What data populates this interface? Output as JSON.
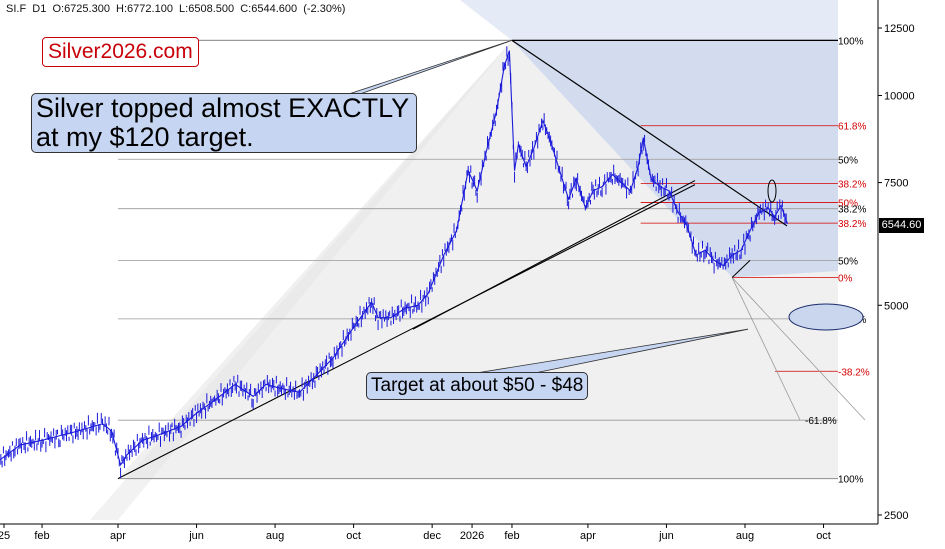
{
  "header": {
    "ohlc": "SI.F  D1  O:6725.300  H:6772.100  L:6508.500  C:6544.600  (-2.30%)"
  },
  "brand": "Silver2026.com",
  "annotations": {
    "top_callout": [
      "Silver topped almost EXACTLY",
      "at my $120 target."
    ],
    "bottom_callout": "Target at about $50 - $48"
  },
  "last_price_tag": "6544.60",
  "colors": {
    "candles": "#1a1adb",
    "fib_red": "#d40000",
    "level_line": "#999999",
    "callout_fill": "#c5d5f2",
    "brand_red": "#c8000a",
    "shade_blue": "#c9d6ee",
    "shade_grey": "#e3e3e3"
  },
  "chart_data": {
    "type": "line",
    "title": "",
    "xlabel": "",
    "ylabel": "",
    "y_scale": "log",
    "ylim": [
      2400,
      13500
    ],
    "y_ticks": [
      2500,
      5000,
      7500,
      10000,
      12500
    ],
    "x_tick_labels": [
      "25",
      "feb",
      "apr",
      "jun",
      "aug",
      "oct",
      "dec",
      "2026",
      "feb",
      "apr",
      "jun",
      "aug",
      "oct"
    ],
    "x_tick_dates": [
      "2025-01-01",
      "2025-02-01",
      "2025-04-01",
      "2025-06-01",
      "2025-08-01",
      "2025-10-01",
      "2025-12-01",
      "2026-01-01",
      "2026-02-01",
      "2026-04-01",
      "2026-06-01",
      "2026-08-01",
      "2026-10-01"
    ],
    "x_range": [
      "2024-12-22",
      "2026-10-15"
    ],
    "series": [
      {
        "values_x": [
          "2024-12-25",
          "2025-01-15",
          "2025-02-01",
          "2025-02-15",
          "2025-03-01",
          "2025-03-20",
          "2025-03-27",
          "2025-04-03",
          "2025-04-08",
          "2025-04-20",
          "2025-05-01",
          "2025-05-20",
          "2025-06-01",
          "2025-06-15",
          "2025-07-01",
          "2025-07-15",
          "2025-07-25",
          "2025-08-05",
          "2025-08-20",
          "2025-09-01",
          "2025-09-15",
          "2025-10-01",
          "2025-10-15",
          "2025-10-20",
          "2025-10-30",
          "2025-11-10",
          "2025-11-20",
          "2025-11-28",
          "2025-12-10",
          "2025-12-20",
          "2025-12-29",
          "2026-01-05",
          "2026-01-12",
          "2026-01-20",
          "2026-01-26",
          "2026-01-30",
          "2026-02-03",
          "2026-02-06",
          "2026-02-12",
          "2026-02-18",
          "2026-02-25",
          "2026-03-03",
          "2026-03-10",
          "2026-03-17",
          "2026-03-23",
          "2026-03-30",
          "2026-04-05",
          "2026-04-12",
          "2026-04-20",
          "2026-04-27",
          "2026-05-04",
          "2026-05-10",
          "2026-05-14",
          "2026-05-20",
          "2026-05-27",
          "2026-06-03",
          "2026-06-10",
          "2026-06-17",
          "2026-06-24",
          "2026-07-01",
          "2026-07-08",
          "2026-07-15",
          "2026-07-22",
          "2026-07-29",
          "2026-08-05",
          "2026-08-12",
          "2026-08-19",
          "2026-08-24",
          "2026-08-29",
          "2026-09-03"
        ],
        "values": [
          2950,
          3150,
          3200,
          3250,
          3300,
          3380,
          3300,
          2950,
          3050,
          3200,
          3250,
          3350,
          3500,
          3650,
          3850,
          3700,
          3850,
          3800,
          3750,
          3950,
          4200,
          4650,
          5050,
          4800,
          4800,
          4950,
          5000,
          5200,
          5900,
          6400,
          7800,
          7300,
          8300,
          9500,
          11000,
          11600,
          7800,
          8500,
          7900,
          8400,
          9200,
          8600,
          7800,
          7100,
          7600,
          6900,
          7300,
          7400,
          7700,
          7500,
          7300,
          7900,
          8700,
          7600,
          7400,
          7300,
          6800,
          6500,
          5900,
          6000,
          5800,
          5700,
          5900,
          6000,
          6400,
          6800,
          6900,
          6700,
          6950,
          6544
        ]
      }
    ],
    "fib_levels_right": [
      {
        "label": "100%",
        "y": 12000,
        "color": "#000000"
      },
      {
        "label": "61.8%",
        "y": 9050,
        "color": "#d40000"
      },
      {
        "label": "50%",
        "y": 8100,
        "color": "#000000"
      },
      {
        "label": "38.2%",
        "y": 7480,
        "color": "#d40000"
      },
      {
        "label": "50%",
        "y": 7020,
        "color": "#d40000"
      },
      {
        "label": "38.2%",
        "y": 6880,
        "color": "#000000"
      },
      {
        "label": "38.2%",
        "y": 6560,
        "color": "#d40000"
      },
      {
        "label": "50%",
        "y": 5800,
        "color": "#000000"
      },
      {
        "label": "0%",
        "y": 5480,
        "color": "#d40000"
      },
      {
        "label": "61.8%",
        "y": 4780,
        "color": "#000000"
      },
      {
        "label": "-38.2%",
        "y": 4020,
        "color": "#d40000"
      },
      {
        "label": "-61.8%",
        "y": 3420,
        "color": "#000000"
      },
      {
        "label": "100%",
        "y": 2820,
        "color": "#000000"
      }
    ]
  }
}
